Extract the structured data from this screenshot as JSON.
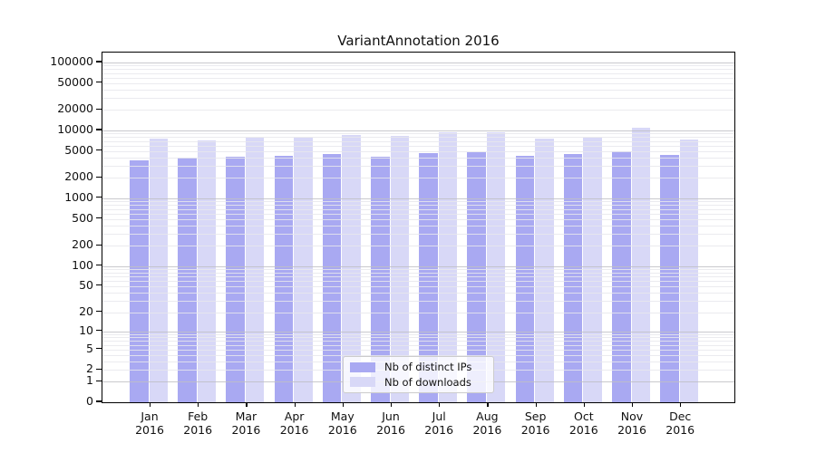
{
  "chart_data": {
    "type": "bar",
    "title": "VariantAnnotation 2016",
    "year": "2016",
    "categories": [
      "Jan",
      "Feb",
      "Mar",
      "Apr",
      "May",
      "Jun",
      "Jul",
      "Aug",
      "Sep",
      "Oct",
      "Nov",
      "Dec"
    ],
    "series": [
      {
        "name": "Nb of distinct IPs",
        "color": "#a9a9f2",
        "values": [
          3650,
          3950,
          4150,
          4250,
          4500,
          4100,
          4650,
          4750,
          4300,
          4450,
          4950,
          4400
        ]
      },
      {
        "name": "Nb of downloads",
        "color": "#d8d8f7",
        "values": [
          7500,
          7100,
          7800,
          7800,
          8600,
          8300,
          9350,
          9350,
          7700,
          7900,
          11100,
          7400
        ]
      }
    ],
    "yscale": "log(1+x)",
    "ylim": [
      0,
      140000
    ],
    "yticks": [
      100000,
      50000,
      20000,
      10000,
      5000,
      2000,
      1000,
      500,
      200,
      100,
      50,
      20,
      10,
      5,
      2,
      1,
      0
    ],
    "grid": "horizontal, minor log gridlines, drawn over bars",
    "legend_position": "lower center inside plot",
    "colors": {
      "distinct_ips": "#a9a9f2",
      "downloads": "#d8d8f7",
      "grid_major": "#bfbfc4",
      "grid_minor": "#e7e7ec",
      "frame": "#000000"
    }
  }
}
